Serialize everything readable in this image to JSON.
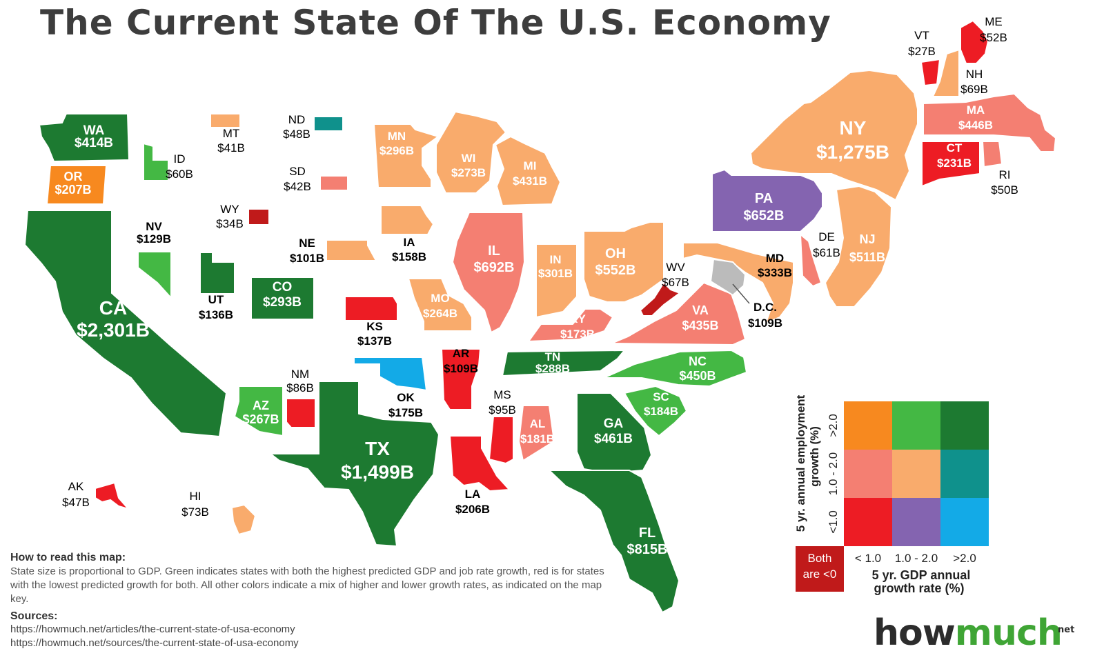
{
  "header": {
    "title": "The Current State Of The U.S. Economy"
  },
  "colors": {
    "dark_green": "#1d7a31",
    "green": "#44b844",
    "orange": "#f7891f",
    "light_orange": "#f9ab6c",
    "salmon": "#f47f72",
    "red": "#ed1c24",
    "dark_red": "#c01a1a",
    "purple": "#8464b0",
    "teal": "#0f918c",
    "blue": "#13aae7",
    "gray": "#bbbbbb"
  },
  "states": [
    {
      "code": "WA",
      "value": "$414B",
      "color": "dark_green"
    },
    {
      "code": "OR",
      "value": "$207B",
      "color": "orange"
    },
    {
      "code": "CA",
      "value": "$2,301B",
      "color": "dark_green"
    },
    {
      "code": "NV",
      "value": "$129B",
      "color": "green"
    },
    {
      "code": "ID",
      "value": "$60B",
      "color": "green"
    },
    {
      "code": "MT",
      "value": "$41B",
      "color": "light_orange"
    },
    {
      "code": "WY",
      "value": "$34B",
      "color": "dark_red"
    },
    {
      "code": "UT",
      "value": "$136B",
      "color": "dark_green"
    },
    {
      "code": "CO",
      "value": "$293B",
      "color": "dark_green"
    },
    {
      "code": "AZ",
      "value": "$267B",
      "color": "green"
    },
    {
      "code": "NM",
      "value": "$86B",
      "color": "red"
    },
    {
      "code": "ND",
      "value": "$48B",
      "color": "teal"
    },
    {
      "code": "SD",
      "value": "$42B",
      "color": "salmon"
    },
    {
      "code": "NE",
      "value": "$101B",
      "color": "light_orange"
    },
    {
      "code": "KS",
      "value": "$137B",
      "color": "red"
    },
    {
      "code": "OK",
      "value": "$175B",
      "color": "blue"
    },
    {
      "code": "TX",
      "value": "$1,499B",
      "color": "dark_green"
    },
    {
      "code": "MN",
      "value": "$296B",
      "color": "light_orange"
    },
    {
      "code": "IA",
      "value": "$158B",
      "color": "light_orange"
    },
    {
      "code": "MO",
      "value": "$264B",
      "color": "light_orange"
    },
    {
      "code": "AR",
      "value": "$109B",
      "color": "red"
    },
    {
      "code": "LA",
      "value": "$206B",
      "color": "red"
    },
    {
      "code": "WI",
      "value": "$273B",
      "color": "light_orange"
    },
    {
      "code": "IL",
      "value": "$692B",
      "color": "salmon"
    },
    {
      "code": "MI",
      "value": "$431B",
      "color": "light_orange"
    },
    {
      "code": "IN",
      "value": "$301B",
      "color": "light_orange"
    },
    {
      "code": "OH",
      "value": "$552B",
      "color": "light_orange"
    },
    {
      "code": "KY",
      "value": "$173B",
      "color": "salmon"
    },
    {
      "code": "TN",
      "value": "$288B",
      "color": "dark_green"
    },
    {
      "code": "MS",
      "value": "$95B",
      "color": "red"
    },
    {
      "code": "AL",
      "value": "$181B",
      "color": "salmon"
    },
    {
      "code": "GA",
      "value": "$461B",
      "color": "dark_green"
    },
    {
      "code": "FL",
      "value": "$815B",
      "color": "dark_green"
    },
    {
      "code": "SC",
      "value": "$184B",
      "color": "green"
    },
    {
      "code": "NC",
      "value": "$450B",
      "color": "green"
    },
    {
      "code": "VA",
      "value": "$435B",
      "color": "salmon"
    },
    {
      "code": "WV",
      "value": "$67B",
      "color": "dark_red"
    },
    {
      "code": "PA",
      "value": "$652B",
      "color": "purple"
    },
    {
      "code": "MD",
      "value": "$333B",
      "color": "light_orange"
    },
    {
      "code": "DE",
      "value": "$61B",
      "color": "salmon"
    },
    {
      "code": "NJ",
      "value": "$511B",
      "color": "light_orange"
    },
    {
      "code": "NY",
      "value": "$1,275B",
      "color": "light_orange"
    },
    {
      "code": "CT",
      "value": "$231B",
      "color": "red"
    },
    {
      "code": "RI",
      "value": "$50B",
      "color": "salmon"
    },
    {
      "code": "MA",
      "value": "$446B",
      "color": "salmon"
    },
    {
      "code": "VT",
      "value": "$27B",
      "color": "red"
    },
    {
      "code": "NH",
      "value": "$69B",
      "color": "light_orange"
    },
    {
      "code": "ME",
      "value": "$52B",
      "color": "red"
    },
    {
      "code": "D.C.",
      "value": "$109B",
      "color": "gray"
    },
    {
      "code": "AK",
      "value": "$47B",
      "color": "red"
    },
    {
      "code": "HI",
      "value": "$73B",
      "color": "light_orange"
    }
  ],
  "legend": {
    "y_title": "5 yr. annual employment growth (%)",
    "y_ticks": [
      ">2.0",
      "1.0 - 2.0",
      "<1.0"
    ],
    "x_title": "5 yr. GDP annual growth rate (%)",
    "x_ticks": [
      "< 1.0",
      "1.0 - 2.0",
      ">2.0"
    ],
    "both_label": "Both are <0",
    "grid": [
      [
        "orange",
        "green",
        "dark_green"
      ],
      [
        "salmon",
        "light_orange",
        "teal"
      ],
      [
        "red",
        "purple",
        "blue"
      ]
    ],
    "both_color": "dark_red"
  },
  "notes": {
    "how_heading": "How to read this map:",
    "how_text": "State size is proportional to GDP. Green indicates states with both the highest predicted GDP and job rate growth, red is for states with the lowest predicted growth for both. All other colors indicate a mix of higher and lower growth rates, as indicated on the map key.",
    "sources_heading": "Sources:",
    "source_urls": [
      "https://howmuch.net/articles/the-current-state-of-usa-economy",
      "https://howmuch.net/sources/the-current-state-of-usa-economy"
    ]
  },
  "brand": {
    "how": "how",
    "much": "much",
    "net": "net"
  }
}
